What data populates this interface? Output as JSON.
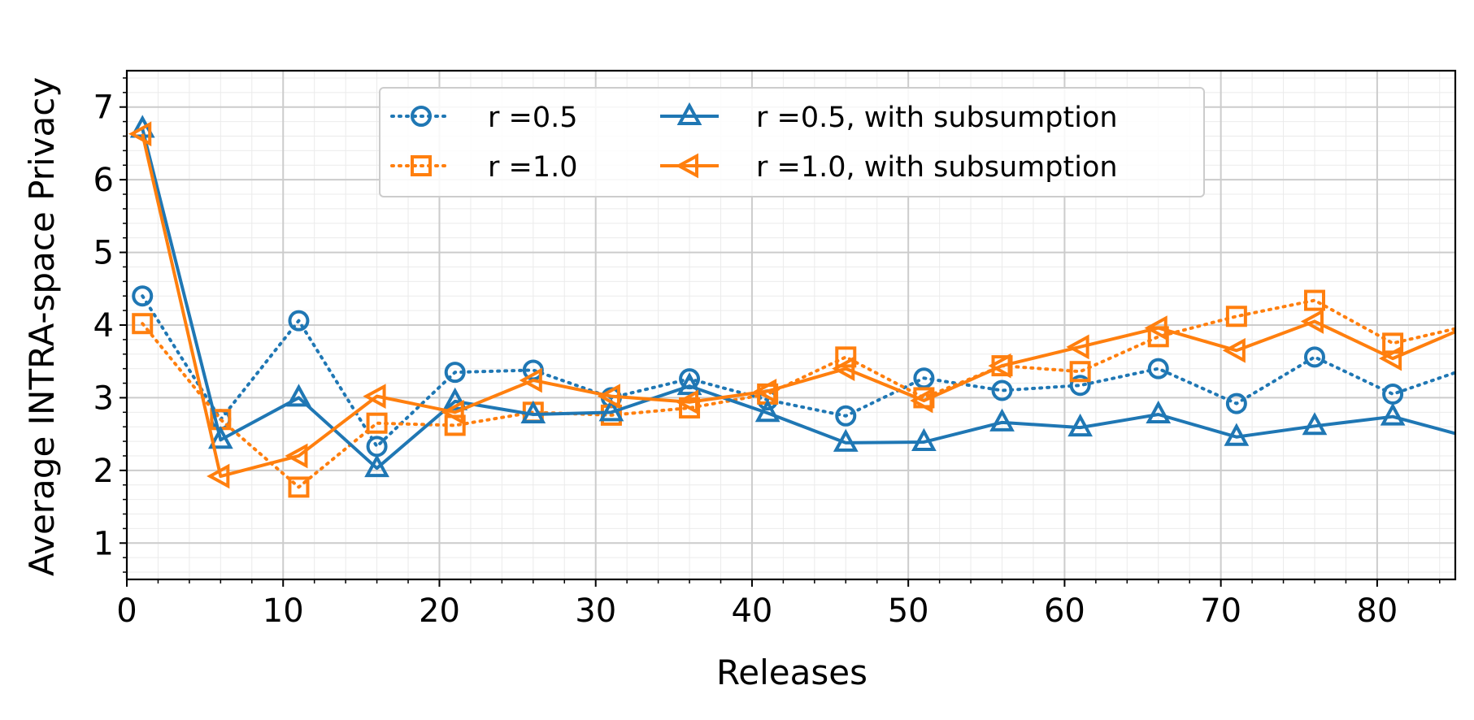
{
  "chart_data": {
    "type": "line",
    "xlabel": "Releases",
    "ylabel": "Average INTRA-space Privacy",
    "xlim": [
      0,
      85
    ],
    "ylim": [
      0.5,
      7.5
    ],
    "xticks": [
      0,
      10,
      20,
      30,
      40,
      50,
      60,
      70,
      80
    ],
    "yticks": [
      1,
      2,
      3,
      4,
      5,
      6,
      7
    ],
    "x_minor_step": 2,
    "y_minor_step": 0.2,
    "grid": true,
    "legend_position": "top-center",
    "x": [
      1,
      6,
      11,
      16,
      21,
      26,
      31,
      36,
      41,
      46,
      51,
      56,
      61,
      66,
      71,
      76,
      81,
      86
    ],
    "series": [
      {
        "name": "r =0.5",
        "color": "#1f77b4",
        "linestyle": "dotted",
        "marker": "circle",
        "values": [
          4.4,
          2.7,
          4.06,
          2.33,
          3.35,
          3.38,
          3.0,
          3.26,
          2.97,
          2.75,
          3.27,
          3.1,
          3.17,
          3.4,
          2.92,
          3.56,
          3.05,
          3.42
        ]
      },
      {
        "name": "r =1.0",
        "color": "#ff7f0e",
        "linestyle": "dotted",
        "marker": "square",
        "values": [
          4.02,
          2.7,
          1.77,
          2.65,
          2.62,
          2.8,
          2.76,
          2.86,
          3.05,
          3.56,
          3.0,
          3.44,
          3.36,
          3.84,
          4.12,
          4.34,
          3.75,
          4.0
        ]
      },
      {
        "name": "r =0.5, with subsumption",
        "color": "#1f77b4",
        "linestyle": "solid",
        "marker": "triangle-up",
        "values": [
          6.7,
          2.42,
          3.0,
          2.03,
          2.95,
          2.77,
          2.8,
          3.16,
          2.79,
          2.38,
          2.39,
          2.66,
          2.59,
          2.77,
          2.46,
          2.61,
          2.74,
          2.45
        ]
      },
      {
        "name": "r =1.0, with subsumption",
        "color": "#ff7f0e",
        "linestyle": "solid",
        "marker": "triangle-left",
        "values": [
          6.63,
          1.92,
          2.2,
          3.02,
          2.8,
          3.24,
          3.02,
          2.94,
          3.09,
          3.4,
          2.96,
          3.44,
          3.7,
          3.96,
          3.65,
          4.05,
          3.54,
          4.0
        ]
      }
    ]
  }
}
